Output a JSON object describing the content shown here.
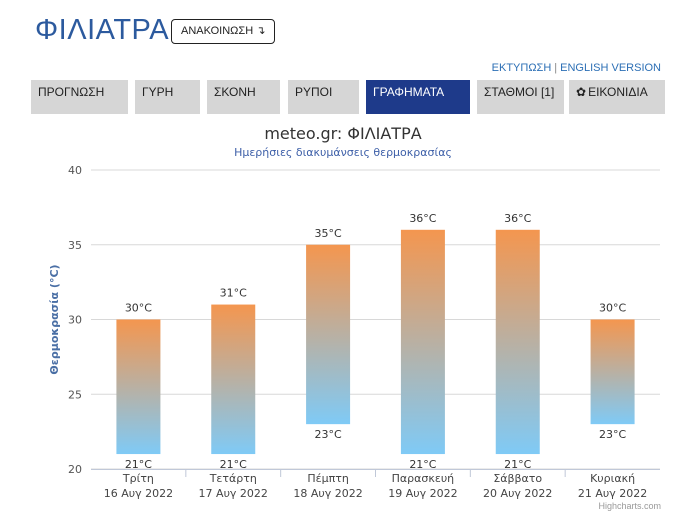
{
  "header": {
    "title": "ΦΙΛΙΑΤΡΑ",
    "announce_label": "ΑΝΑΚΟΙΝΩΣΗ ↴",
    "print_label": "ΕΚΤΥΠΩΣΗ",
    "separator": "|",
    "english_label": "ENGLISH VERSION"
  },
  "tabs": [
    {
      "label": "ΠΡΟΓΝΩΣΗ",
      "active": false
    },
    {
      "label": "ΓΥΡΗ",
      "active": false
    },
    {
      "label": "ΣΚΟΝΗ",
      "active": false
    },
    {
      "label": "ΡΥΠΟΙ",
      "active": false
    },
    {
      "label": "ΓΡΑΦΗΜΑΤΑ",
      "active": true
    },
    {
      "label": "ΣΤΑΘΜΟΙ [1]",
      "active": false
    },
    {
      "label": "ΕΙΚΟΝΙΔΙΑ",
      "active": false,
      "icon": "gear-icon"
    }
  ],
  "chart_data": {
    "type": "bar",
    "subtype": "column-range",
    "title": "meteo.gr: ΦΙΛΙΑΤΡΑ",
    "subtitle": "Ημερήσιες διακυμάνσεις θερμοκρασίας",
    "ylabel": "Θερμοκρασία (°C)",
    "xlabel": "",
    "ylim": [
      20,
      40
    ],
    "yticks": [
      20,
      25,
      30,
      35,
      40
    ],
    "grid": true,
    "legend": "none",
    "unit": "°C",
    "categories": [
      {
        "day": "Τρίτη",
        "date": "16 Αυγ 2022"
      },
      {
        "day": "Τετάρτη",
        "date": "17 Αυγ 2022"
      },
      {
        "day": "Πέμπτη",
        "date": "18 Αυγ 2022"
      },
      {
        "day": "Παρασκευή",
        "date": "19 Αυγ 2022"
      },
      {
        "day": "Σάββατο",
        "date": "20 Αυγ 2022"
      },
      {
        "day": "Κυριακή",
        "date": "21 Αυγ 2022"
      }
    ],
    "series": [
      {
        "low": 21,
        "high": 30
      },
      {
        "low": 21,
        "high": 31
      },
      {
        "low": 23,
        "high": 35
      },
      {
        "low": 21,
        "high": 36
      },
      {
        "low": 21,
        "high": 36
      },
      {
        "low": 23,
        "high": 30
      }
    ],
    "colors": {
      "high": "#f4964f",
      "low": "#7fcaf6",
      "grid": "#d8d8d8",
      "axis_title": "#4a6fa5",
      "title": "#333333",
      "subtitle": "#3d5fa8"
    },
    "credit": "Highcharts.com"
  }
}
